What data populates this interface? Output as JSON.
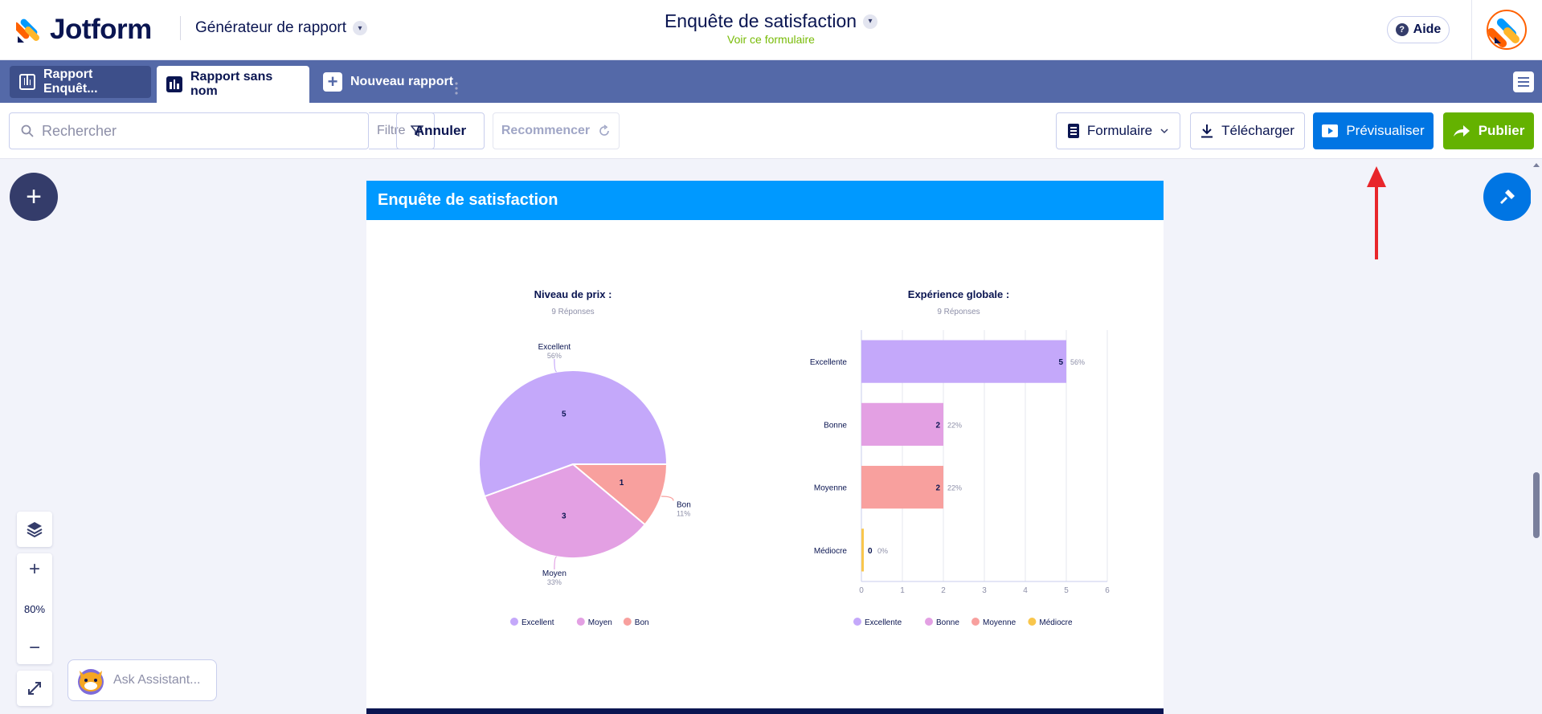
{
  "header": {
    "brand": "Jotform",
    "app_name": "Générateur de rapport",
    "form_title": "Enquête de satisfaction",
    "view_form_link": "Voir ce formulaire",
    "help_label": "Aide"
  },
  "tabs": [
    {
      "label": "Rapport Enquêt..."
    },
    {
      "label": "Rapport sans nom"
    },
    {
      "label": "Nouveau rapport"
    }
  ],
  "toolbar": {
    "search_placeholder": "Rechercher",
    "filter_label": "Filtre",
    "undo_label": "Annuler",
    "restart_label": "Recommencer",
    "form_dropdown_label": "Formulaire",
    "download_label": "Télécharger",
    "preview_label": "Prévisualiser",
    "publish_label": "Publier"
  },
  "report": {
    "page_title": "Enquête de satisfaction"
  },
  "zoom": {
    "level": "80%"
  },
  "assistant": {
    "placeholder": "Ask Assistant..."
  },
  "colors": {
    "excellent": "#c4a8fa",
    "moyen": "#e3a0e3",
    "bon": "#f8a09e",
    "mediocre": "#f9c64c",
    "header_blue": "#0099ff",
    "preview_blue": "#0075e3",
    "publish_green": "#64b200",
    "tabbar": "#5469a8"
  },
  "chart_data": [
    {
      "type": "pie",
      "title": "Niveau de prix :",
      "subtitle": "9 Réponses",
      "categories": [
        "Excellent",
        "Moyen",
        "Bon"
      ],
      "values": [
        5,
        3,
        1
      ],
      "percent_labels": [
        "56%",
        "33%",
        "11%"
      ],
      "legend": [
        "Excellent",
        "Moyen",
        "Bon"
      ],
      "legend_position": "bottom"
    },
    {
      "type": "bar",
      "orientation": "horizontal",
      "title": "Expérience globale :",
      "subtitle": "9 Réponses",
      "categories": [
        "Excellente",
        "Bonne",
        "Moyenne",
        "Médiocre"
      ],
      "values": [
        5,
        2,
        2,
        0
      ],
      "percent_labels": [
        "56%",
        "22%",
        "22%",
        "0%"
      ],
      "xlim": [
        0,
        6
      ],
      "x_ticks": [
        "0",
        "1",
        "2",
        "3",
        "4",
        "5",
        "6"
      ],
      "grid": true,
      "legend": [
        "Excellente",
        "Bonne",
        "Moyenne",
        "Médiocre"
      ],
      "legend_position": "bottom"
    }
  ]
}
